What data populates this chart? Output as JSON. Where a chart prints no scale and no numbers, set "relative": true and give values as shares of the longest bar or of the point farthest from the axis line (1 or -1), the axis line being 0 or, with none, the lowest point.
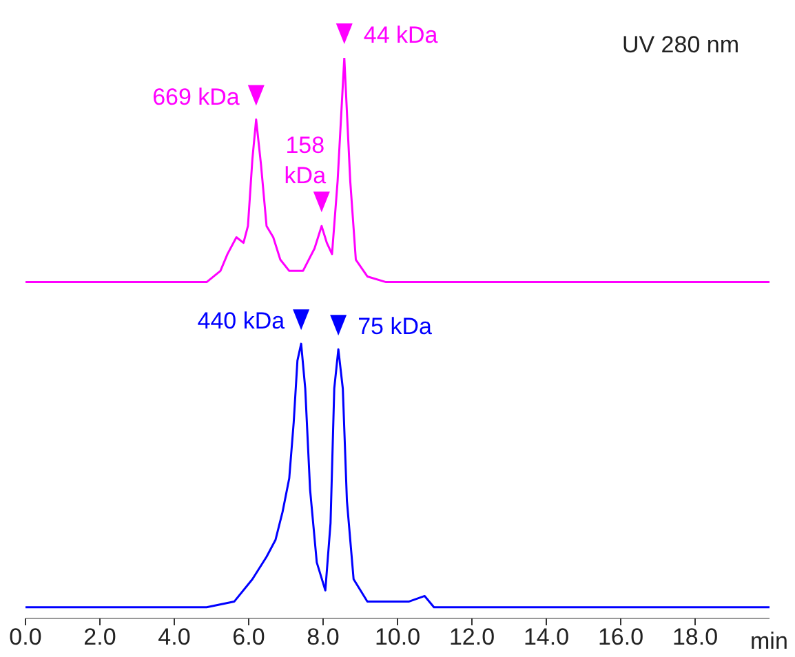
{
  "chart_data": {
    "type": "line",
    "relative": true,
    "xlim": [
      0,
      20
    ],
    "xticks": [
      {
        "value": 0,
        "label": "0.0"
      },
      {
        "value": 2,
        "label": "2.0"
      },
      {
        "value": 4,
        "label": "4.0"
      },
      {
        "value": 6,
        "label": "6.0"
      },
      {
        "value": 8,
        "label": "8.0"
      },
      {
        "value": 10,
        "label": "10.0"
      },
      {
        "value": 12,
        "label": "12.0"
      },
      {
        "value": 14,
        "label": "14.0"
      },
      {
        "value": 16,
        "label": "16.0"
      },
      {
        "value": 18,
        "label": "18.0"
      }
    ],
    "xlabel": "min",
    "marker": "none",
    "annotations": [
      "UV 280 nm",
      {
        "text": "669 kDa",
        "x": 6.2,
        "y": 0.89
      },
      {
        "text": "158 kDa",
        "x": 7.96,
        "y": 0.7
      },
      {
        "text": "44 kDa",
        "x": 8.57,
        "y": 1.0
      },
      {
        "text": "440 kDa",
        "x": 7.41,
        "y": 0.49
      },
      {
        "text": "75 kDa",
        "x": 8.41,
        "y": 0.48
      }
    ],
    "series": [
      {
        "color": "#ff00ff",
        "x": [
          0,
          2,
          4,
          4.87,
          5.24,
          5.43,
          5.67,
          5.86,
          5.98,
          6.1,
          6.2,
          6.33,
          6.48,
          6.66,
          6.85,
          7.09,
          7.46,
          7.77,
          7.96,
          8.1,
          8.24,
          8.39,
          8.57,
          8.73,
          8.88,
          9.19,
          9.69,
          12,
          16,
          20
        ],
        "values": [
          0.6,
          0.6,
          0.6,
          0.6,
          0.62,
          0.65,
          0.68,
          0.67,
          0.7,
          0.82,
          0.89,
          0.81,
          0.7,
          0.68,
          0.64,
          0.62,
          0.62,
          0.66,
          0.7,
          0.67,
          0.65,
          0.78,
          1.0,
          0.78,
          0.64,
          0.61,
          0.6,
          0.6,
          0.6,
          0.6
        ]
      },
      {
        "color": "#0000ff",
        "x": [
          0,
          2,
          4,
          4.87,
          5.61,
          6.1,
          6.48,
          6.72,
          6.91,
          7.09,
          7.21,
          7.31,
          7.41,
          7.52,
          7.65,
          7.83,
          8.06,
          8.2,
          8.3,
          8.41,
          8.53,
          8.64,
          8.82,
          9.19,
          10.3,
          10.73,
          10.98,
          14,
          20
        ],
        "values": [
          0.02,
          0.02,
          0.02,
          0.02,
          0.03,
          0.07,
          0.11,
          0.14,
          0.19,
          0.25,
          0.35,
          0.46,
          0.49,
          0.41,
          0.23,
          0.1,
          0.05,
          0.17,
          0.41,
          0.48,
          0.41,
          0.21,
          0.07,
          0.03,
          0.03,
          0.04,
          0.02,
          0.02,
          0.02
        ]
      }
    ]
  }
}
